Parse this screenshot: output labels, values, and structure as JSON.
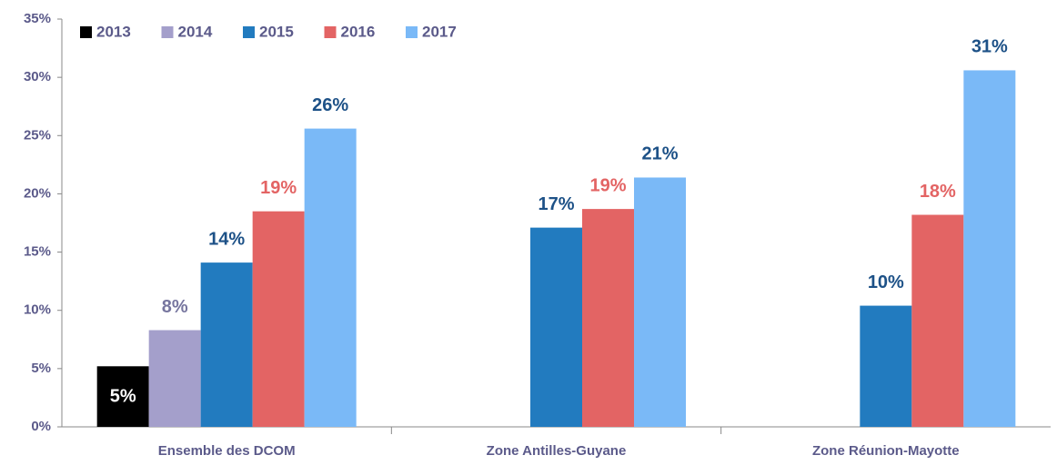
{
  "chart_data": {
    "type": "bar",
    "categories": [
      "Ensemble des DCOM",
      "Zone Antilles-Guyane",
      "Zone Réunion-Mayotte"
    ],
    "series": [
      {
        "name": "2013",
        "color": "#000000",
        "label_color": "#ffffff",
        "values": [
          5.2,
          null,
          null
        ],
        "value_labels": [
          "5%",
          null,
          null
        ]
      },
      {
        "name": "2014",
        "color": "#a49fcb",
        "label_color": "#77769f",
        "values": [
          8.3,
          null,
          null
        ],
        "value_labels": [
          "8%",
          null,
          null
        ]
      },
      {
        "name": "2015",
        "color": "#227bbf",
        "label_color": "#1d5187",
        "values": [
          14.1,
          17.1,
          10.4
        ],
        "value_labels": [
          "14%",
          "17%",
          "10%"
        ]
      },
      {
        "name": "2016",
        "color": "#e36464",
        "label_color": "#e36464",
        "values": [
          18.5,
          18.7,
          18.2
        ],
        "value_labels": [
          "19%",
          "19%",
          "18%"
        ]
      },
      {
        "name": "2017",
        "color": "#7ab9f7",
        "label_color": "#1d5187",
        "values": [
          25.6,
          21.4,
          30.6
        ],
        "value_labels": [
          "26%",
          "21%",
          "31%"
        ]
      }
    ],
    "ylim": [
      0,
      35
    ],
    "yticks": [
      {
        "value": 0,
        "label": "0%"
      },
      {
        "value": 5,
        "label": "5%"
      },
      {
        "value": 10,
        "label": "10%"
      },
      {
        "value": 15,
        "label": "15%"
      },
      {
        "value": 20,
        "label": "20%"
      },
      {
        "value": 25,
        "label": "25%"
      },
      {
        "value": 30,
        "label": "30%"
      },
      {
        "value": 35,
        "label": "35%"
      }
    ],
    "legend": "top-left"
  }
}
